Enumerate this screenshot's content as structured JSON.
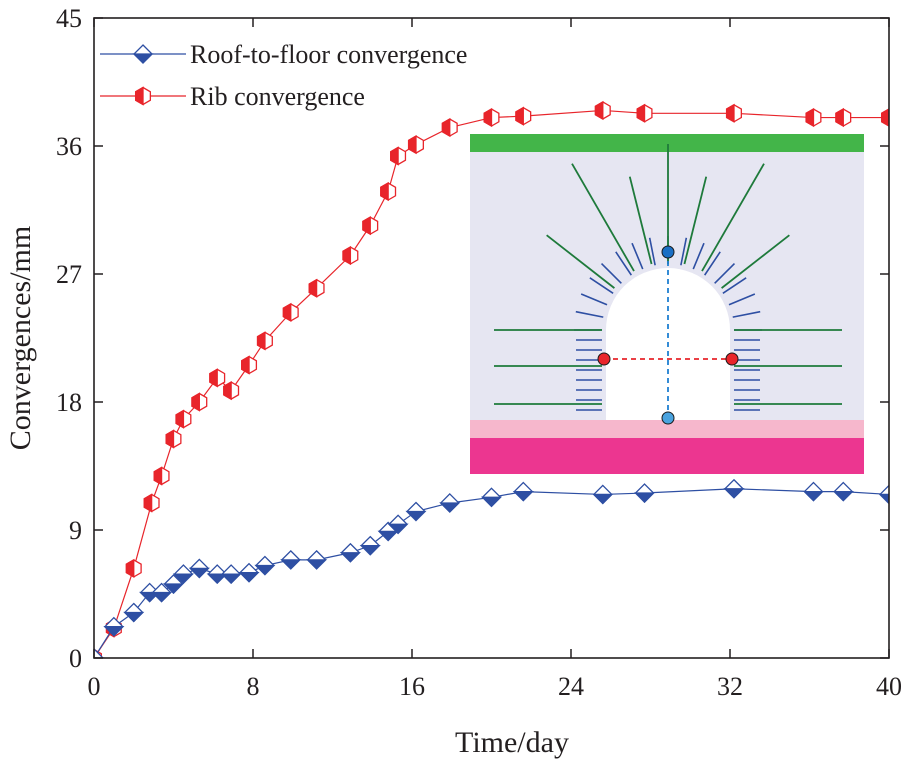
{
  "chart_data": {
    "type": "line",
    "xlabel": "Time/day",
    "ylabel": "Convergences/mm",
    "xlim": [
      0,
      40
    ],
    "ylim": [
      0,
      45
    ],
    "xticks": [
      0,
      8,
      16,
      24,
      32,
      40
    ],
    "yticks": [
      0,
      9,
      18,
      27,
      36,
      45
    ],
    "legend_position": "top-left",
    "series": [
      {
        "name": "Roof-to-floor convergence",
        "color": "#2e4fa3",
        "marker": "half-filled-diamond",
        "x": [
          0,
          1,
          2,
          2.8,
          3.4,
          4,
          4.5,
          5.3,
          6.2,
          6.9,
          7.8,
          8.6,
          9.9,
          11.2,
          12.9,
          13.9,
          14.8,
          15.3,
          16.2,
          17.9,
          20,
          21.6,
          25.6,
          27.7,
          32.2,
          36.2,
          37.7,
          40
        ],
        "y": [
          0,
          2.2,
          3.2,
          4.6,
          4.6,
          5.2,
          5.9,
          6.3,
          5.9,
          5.9,
          6.0,
          6.5,
          6.9,
          6.9,
          7.4,
          7.9,
          8.9,
          9.4,
          10.3,
          10.9,
          11.3,
          11.7,
          11.5,
          11.6,
          11.9,
          11.7,
          11.7,
          11.5
        ]
      },
      {
        "name": "Rib convergence",
        "color": "#e8252b",
        "marker": "half-filled-hexagon",
        "x": [
          0,
          1,
          2,
          2.9,
          3.4,
          4,
          4.5,
          5.3,
          6.2,
          6.9,
          7.8,
          8.6,
          9.9,
          11.2,
          12.9,
          13.9,
          14.8,
          15.3,
          16.2,
          17.9,
          20,
          21.6,
          25.6,
          27.7,
          32.2,
          36.2,
          37.7,
          40
        ],
        "y": [
          0,
          2.1,
          6.3,
          10.9,
          12.8,
          15.4,
          16.8,
          18.0,
          19.7,
          18.8,
          20.6,
          22.3,
          24.3,
          26.0,
          28.3,
          30.4,
          32.8,
          35.3,
          36.1,
          37.3,
          38.0,
          38.1,
          38.5,
          38.3,
          38.3,
          38.0,
          38.0,
          38.0
        ]
      }
    ]
  }
}
